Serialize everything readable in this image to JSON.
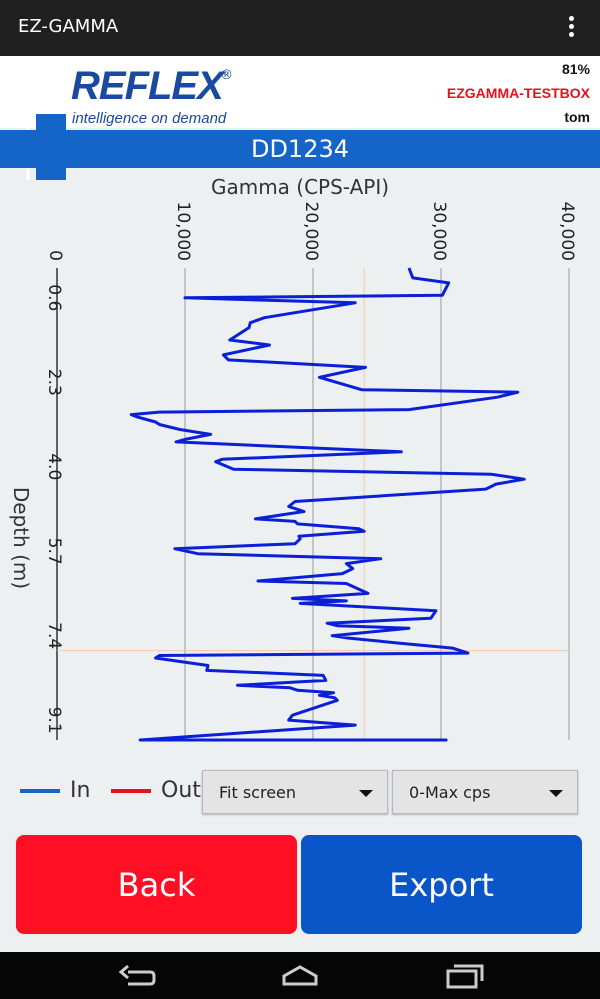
{
  "app": {
    "title": "EZ-GAMMA"
  },
  "header": {
    "brand": "REFLEX",
    "registered": "®",
    "tagline": "intelligence on demand",
    "battery": "81%",
    "device": "EZGAMMA-TESTBOX",
    "user": "tom"
  },
  "hole": {
    "id": "DD1234"
  },
  "chart_data": {
    "type": "line",
    "title": "Gamma (CPS-API)",
    "xlabel": "Gamma (CPS-API)",
    "ylabel": "Depth (m)",
    "xlim": [
      0,
      40000
    ],
    "ylim": [
      0.0,
      9.5
    ],
    "x_ticks": [
      "0",
      "10,000",
      "20,000",
      "30,000",
      "40,000"
    ],
    "y_ticks": [
      "0.6",
      "2.3",
      "4.0",
      "5.7",
      "7.4",
      "9.1"
    ],
    "series": [
      {
        "name": "In",
        "color": "#0a1fd6",
        "depth": [
          0.0,
          0.2,
          0.3,
          0.55,
          0.6,
          0.7,
          1.0,
          1.1,
          1.2,
          1.45,
          1.55,
          1.75,
          1.85,
          2.0,
          2.2,
          2.45,
          2.5,
          2.6,
          2.85,
          2.9,
          2.95,
          3.0,
          3.1,
          3.15,
          3.25,
          3.35,
          3.45,
          3.5,
          3.7,
          3.85,
          3.9,
          4.05,
          4.15,
          4.25,
          4.35,
          4.45,
          4.7,
          4.8,
          4.9,
          5.05,
          5.1,
          5.15,
          5.25,
          5.3,
          5.4,
          5.45,
          5.55,
          5.65,
          5.75,
          5.85,
          5.95,
          6.05,
          6.15,
          6.3,
          6.35,
          6.55,
          6.65,
          6.7,
          6.75,
          6.9,
          7.05,
          7.15,
          7.2,
          7.25,
          7.4,
          7.45,
          7.55,
          7.65,
          7.75,
          7.8,
          7.85,
          8.0,
          8.1,
          8.2,
          8.3,
          8.4,
          8.45,
          8.5,
          8.55,
          8.6,
          8.65,
          8.7,
          9.0,
          9.1,
          9.2,
          9.55,
          9.65,
          9.7,
          9.8,
          9.85,
          9.9,
          9.95,
          10.0
        ],
        "values": [
          27500,
          27800,
          30600,
          30100,
          10000,
          23300,
          16200,
          15100,
          15000,
          13500,
          16600,
          13000,
          13400,
          24100,
          20500,
          23800,
          36000,
          34400,
          27500,
          8000,
          5800,
          6300,
          7700,
          8000,
          9600,
          12000,
          10000,
          9300,
          26900,
          12900,
          12400,
          13800,
          33900,
          36500,
          34300,
          33500,
          18600,
          18100,
          19300,
          15500,
          18600,
          18800,
          23600,
          24000,
          18900,
          19000,
          18600,
          9200,
          11000,
          25300,
          22600,
          23100,
          22300,
          15700,
          22600,
          24300,
          18400,
          22600,
          19000,
          29600,
          29200,
          21100,
          21900,
          27500,
          21500,
          22800,
          26700,
          30900,
          32100,
          8000,
          7700,
          11800,
          11700,
          20800,
          21000,
          14100,
          18200,
          18800,
          21600,
          20500,
          21700,
          21900,
          18400,
          18100,
          23300,
          6500,
          8500,
          19100,
          19700,
          19900,
          30400,
          24100,
          16500
        ]
      },
      {
        "name": "Out",
        "color": "#e8101c",
        "depth": [],
        "values": []
      }
    ],
    "crosshair": {
      "x": 24000,
      "y": 7.7
    }
  },
  "controls": {
    "legend_in": "In",
    "legend_out": "Out",
    "zoom_select": "Fit screen",
    "scale_select": "0-Max cps"
  },
  "actions": {
    "back": "Back",
    "export": "Export"
  },
  "colors": {
    "accent": "#1565c8",
    "back": "#ff0f24",
    "export": "#0a55c8"
  }
}
